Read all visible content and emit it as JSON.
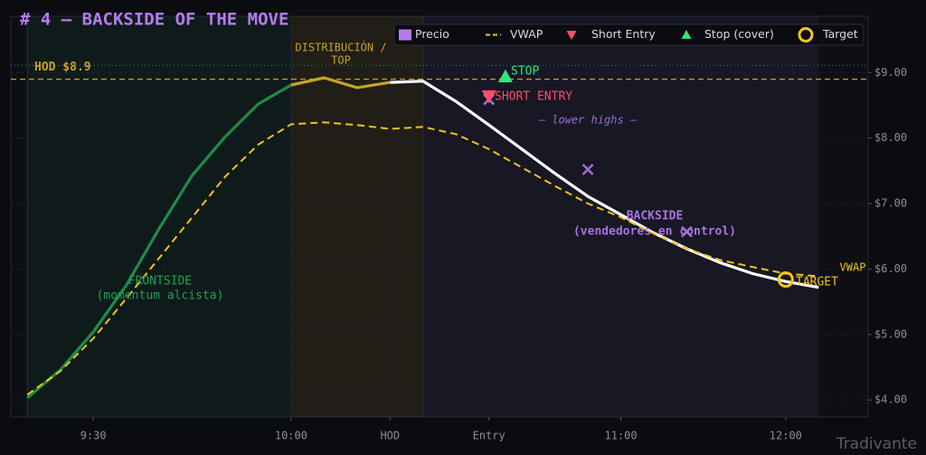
{
  "chart_data": {
    "type": "line",
    "title": "# 4 — BACKSIDE OF THE MOVE",
    "x": [
      0,
      1,
      2,
      3,
      4,
      5,
      6,
      7,
      8,
      9,
      10,
      11,
      12,
      13,
      14,
      15,
      16,
      17,
      18,
      19,
      20,
      21,
      22,
      23,
      24
    ],
    "xlim": [
      -0.5,
      25.5
    ],
    "xticks": [
      {
        "value": 2,
        "label": "9:30"
      },
      {
        "value": 8,
        "label": "10:00"
      },
      {
        "value": 11,
        "label": "HOD"
      },
      {
        "value": 14,
        "label": "Entry"
      },
      {
        "value": 18,
        "label": "11:00"
      },
      {
        "value": 23,
        "label": "12:00"
      }
    ],
    "ylim": [
      3.74,
      9.86
    ],
    "yticks": [
      {
        "value": 4,
        "label": "$4.00"
      },
      {
        "value": 5,
        "label": "$5.00"
      },
      {
        "value": 6,
        "label": "$6.00"
      },
      {
        "value": 7,
        "label": "$7.00"
      },
      {
        "value": 8,
        "label": "$8.00"
      },
      {
        "value": 9,
        "label": "$9.00"
      }
    ],
    "grid": true,
    "series": [
      {
        "name": "Precio",
        "color": "#b57bee",
        "values": [
          4.03,
          4.46,
          5.04,
          5.75,
          6.62,
          7.43,
          8.02,
          8.52,
          8.81,
          8.92,
          8.77,
          8.85,
          8.87,
          8.56,
          8.2,
          7.83,
          7.46,
          7.11,
          6.83,
          6.55,
          6.31,
          6.1,
          5.93,
          5.81,
          5.72
        ],
        "segments": [
          {
            "from": 0,
            "to": 8,
            "color": "#1f8a4c"
          },
          {
            "from": 8,
            "to": 11,
            "color": "#c9a227"
          },
          {
            "from": 11,
            "to": 24,
            "color": "#ffffff"
          }
        ]
      },
      {
        "name": "VWAP",
        "color": "#f0c419",
        "dashed": true,
        "values": [
          4.08,
          4.44,
          4.94,
          5.55,
          6.17,
          6.79,
          7.41,
          7.9,
          8.21,
          8.24,
          8.2,
          8.14,
          8.17,
          8.06,
          7.83,
          7.55,
          7.27,
          7.0,
          6.79,
          6.54,
          6.31,
          6.14,
          6.03,
          5.93,
          5.89
        ]
      }
    ],
    "markers": [
      {
        "name": "Short Entry",
        "color": "#ff4d6a",
        "shape": "triangle-down",
        "x": 14,
        "y": 8.64
      },
      {
        "name": "Stop (cover)",
        "color": "#2ee87a",
        "shape": "triangle-up",
        "x": 14.5,
        "y": 8.94
      },
      {
        "name": "Target",
        "color": "#f5c518",
        "shape": "circle",
        "x": 23,
        "y": 5.84
      }
    ],
    "lower_highs": {
      "color": "#9b6fd6",
      "x": [
        14,
        17,
        20
      ],
      "y": [
        8.59,
        7.52,
        6.57
      ]
    },
    "regions": [
      {
        "from": 0,
        "to": 8,
        "color": "rgba(31,138,76,0.10)"
      },
      {
        "from": 8,
        "to": 12,
        "color": "rgba(201,162,39,0.10)"
      },
      {
        "from": 12,
        "to": 24,
        "color": "rgba(120,100,180,0.10)"
      }
    ],
    "hod_line": {
      "value": 8.9,
      "label": "HOD $8.9",
      "color": "#c9a227"
    },
    "stop_level": {
      "value": 9.11,
      "color": "#2a8a7a"
    },
    "annotations": [
      "DISTRIBUCIÓN /",
      "TOP",
      "STOP",
      "SHORT ENTRY",
      "— lower highs —",
      "BACKSIDE",
      "(vendedores en control)",
      "FRONTSIDE",
      "(momentum alcista)",
      "VWAP",
      "TARGET"
    ],
    "watermark": "Tradivante"
  }
}
